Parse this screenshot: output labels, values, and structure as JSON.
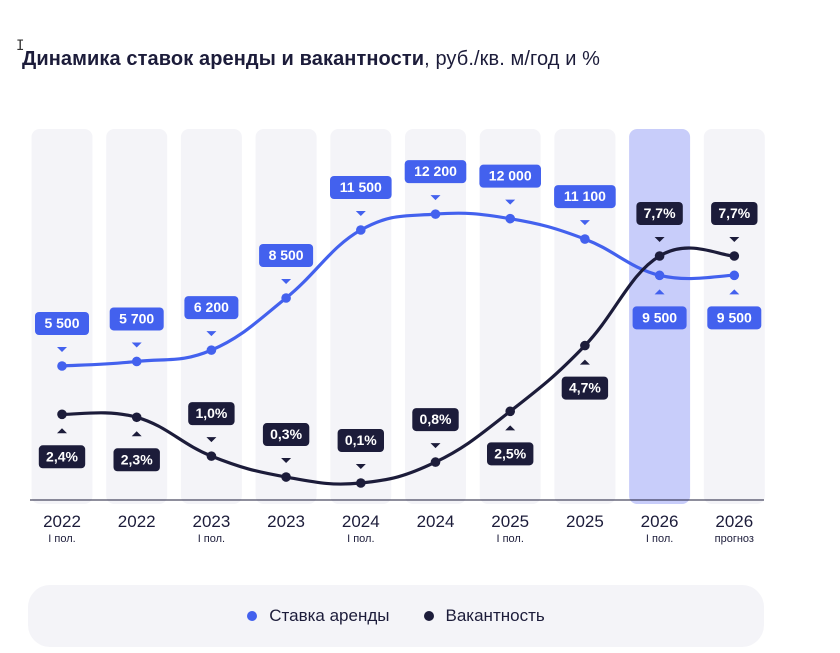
{
  "title": {
    "bold": "Динамика ставок аренды и вакантности",
    "rest": ", руб./кв. м/год и %"
  },
  "colors": {
    "rent": "#4361ee",
    "vacancy": "#1c1c3a",
    "column": "#f4f4f8",
    "column_highlight": "#c8cdfa",
    "axis": "#1c1c3a"
  },
  "chart_data": {
    "type": "line",
    "title": "Динамика ставок аренды и вакантности, руб./кв. м/год и %",
    "x_top": [
      "2022",
      "2022",
      "2023",
      "2023",
      "2024",
      "2024",
      "2025",
      "2025",
      "2026",
      "2026"
    ],
    "x_sub": [
      "I пол.",
      "",
      "I пол.",
      "",
      "I пол.",
      "",
      "I пол.",
      "",
      "I пол.",
      "прогноз"
    ],
    "highlight_index": 8,
    "series": [
      {
        "name": "Ставка аренды",
        "key": "rent",
        "values": [
          5500,
          5700,
          6200,
          8500,
          11500,
          12200,
          12000,
          11100,
          9500,
          9500
        ],
        "labels": [
          "5 500",
          "5 700",
          "6 200",
          "8 500",
          "11 500",
          "12 200",
          "12 000",
          "11 100",
          "9 500",
          "9 500"
        ]
      },
      {
        "name": "Вакантность",
        "key": "vacancy",
        "values": [
          2.4,
          2.3,
          1.0,
          0.3,
          0.1,
          0.8,
          2.5,
          4.7,
          7.7,
          7.7
        ],
        "labels": [
          "2,4%",
          "2,3%",
          "1,0%",
          "0,3%",
          "0,1%",
          "0,8%",
          "2,5%",
          "4,7%",
          "7,7%",
          "7,7%"
        ]
      }
    ],
    "legend_position": "bottom",
    "grid": false
  },
  "legend": {
    "rent_label": "Ставка аренды",
    "vacancy_label": "Вакантность"
  }
}
